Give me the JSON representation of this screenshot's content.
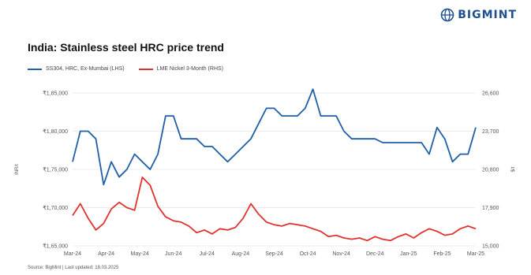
{
  "brand": {
    "name": "BIGMINT",
    "color": "#1d4f91"
  },
  "title": "India: Stainless steel HRC price trend",
  "source": "Source: BigMint | Last updated: 18.03.2025",
  "chart_data": {
    "type": "line",
    "x": [
      "Mar-24",
      "Mar-24",
      "Mar-24",
      "Mar-24",
      "Apr-24",
      "Apr-24",
      "Apr-24",
      "Apr-24",
      "Apr-24",
      "May-24",
      "May-24",
      "May-24",
      "May-24",
      "May-24",
      "Jun-24",
      "Jun-24",
      "Jun-24",
      "Jun-24",
      "Jul-24",
      "Jul-24",
      "Jul-24",
      "Jul-24",
      "Aug-24",
      "Aug-24",
      "Aug-24",
      "Aug-24",
      "Sep-24",
      "Sep-24",
      "Sep-24",
      "Sep-24",
      "Oct-24",
      "Oct-24",
      "Oct-24",
      "Oct-24",
      "Oct-24",
      "Nov-24",
      "Nov-24",
      "Nov-24",
      "Nov-24",
      "Dec-24",
      "Dec-24",
      "Dec-24",
      "Dec-24",
      "Jan-25",
      "Jan-25",
      "Jan-25",
      "Jan-25",
      "Feb-25",
      "Feb-25",
      "Feb-25",
      "Feb-25",
      "Mar-25",
      "Mar-25"
    ],
    "x_ticks": [
      "Mar-24",
      "Apr-24",
      "May-24",
      "Jun-24",
      "Jul-24",
      "Aug-24",
      "Sep-24",
      "Oct-24",
      "Nov-24",
      "Dec-24",
      "Jan-25",
      "Feb-25",
      "Mar-25"
    ],
    "left_ticks": [
      "₹1,65,000",
      "₹1,70,000",
      "₹1,75,000",
      "₹1,80,000",
      "₹1,85,000"
    ],
    "right_ticks": [
      "15,000",
      "17,900",
      "20,800",
      "23,700",
      "26,600"
    ],
    "ylim_left": [
      165000,
      185000
    ],
    "ylim_right": [
      15000,
      26600
    ],
    "ylabel_left": "INR/t",
    "ylabel_right": "$/t",
    "series": [
      {
        "name": "SS304, HRC, Ex-Mumbai (LHS)",
        "axis": "left",
        "color": "#1f5fa8",
        "values": [
          176000,
          180000,
          180000,
          179000,
          173000,
          176000,
          174000,
          175000,
          177000,
          176000,
          175000,
          177000,
          182000,
          182000,
          179000,
          179000,
          179000,
          178000,
          178000,
          177000,
          176000,
          177000,
          178000,
          179000,
          181000,
          183000,
          183000,
          182000,
          182000,
          182000,
          183000,
          185500,
          182000,
          182000,
          182000,
          180000,
          179000,
          179000,
          179000,
          179000,
          178500,
          178500,
          178500,
          178500,
          178500,
          178500,
          177000,
          180500,
          179000,
          176000,
          177000,
          177000,
          180500
        ]
      },
      {
        "name": "LME Nickel 3-Month (RHS)",
        "axis": "right",
        "color": "#e0332f",
        "values": [
          17300,
          18200,
          17100,
          16200,
          16700,
          17800,
          18300,
          17900,
          17700,
          20200,
          19600,
          18000,
          17200,
          16900,
          16800,
          16500,
          16000,
          16200,
          15900,
          16300,
          16200,
          16400,
          17100,
          18200,
          17400,
          16800,
          16600,
          16500,
          16700,
          16600,
          16500,
          16300,
          16100,
          15700,
          15800,
          15600,
          15500,
          15600,
          15400,
          15700,
          15500,
          15400,
          15700,
          15900,
          15600,
          16000,
          16300,
          16100,
          15800,
          15900,
          16300,
          16500,
          16300
        ]
      }
    ],
    "grid": true,
    "legend_position": "top-left"
  }
}
